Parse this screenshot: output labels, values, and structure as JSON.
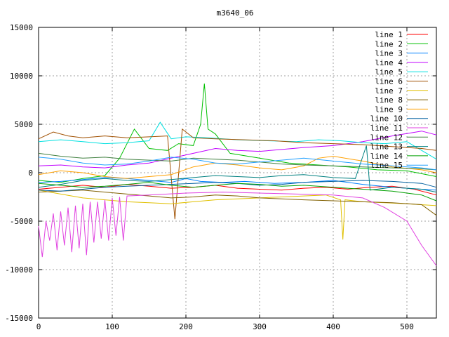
{
  "chart_data": {
    "type": "line",
    "title": "m3640_06",
    "xlabel": "",
    "ylabel": "",
    "xlim": [
      0,
      540
    ],
    "ylim": [
      -15000,
      15000
    ],
    "xticks": [
      0,
      100,
      200,
      300,
      400,
      500
    ],
    "yticks": [
      -15000,
      -10000,
      -5000,
      0,
      5000,
      10000,
      15000
    ],
    "grid": true,
    "legend_position": "top-right",
    "series": [
      {
        "name": "line 1",
        "color": "#ff0000",
        "x": [
          0,
          30,
          60,
          90,
          120,
          150,
          180,
          210,
          240,
          270,
          300,
          330,
          360,
          390,
          420,
          450,
          480,
          510,
          540
        ],
        "y": [
          -1700,
          -1500,
          -1300,
          -1500,
          -1200,
          -1400,
          -1600,
          -1500,
          -1300,
          -1600,
          -1700,
          -1800,
          -1600,
          -1500,
          -1700,
          -1500,
          -1400,
          -1700,
          -2300
        ]
      },
      {
        "name": "line 2",
        "color": "#00c000",
        "x": [
          0,
          30,
          60,
          90,
          110,
          130,
          150,
          175,
          190,
          210,
          220,
          225,
          230,
          240,
          260,
          300,
          340,
          380,
          420,
          460,
          500,
          540
        ],
        "y": [
          -800,
          -1000,
          -600,
          -300,
          1500,
          4500,
          2500,
          2300,
          3000,
          2800,
          5000,
          9200,
          4500,
          4000,
          2000,
          1500,
          1000,
          800,
          600,
          300,
          200,
          -400
        ]
      },
      {
        "name": "line 3",
        "color": "#0080ff",
        "x": [
          0,
          30,
          60,
          90,
          120,
          150,
          180,
          200,
          220,
          250,
          280,
          320,
          360,
          400,
          440,
          480,
          520,
          540
        ],
        "y": [
          -1000,
          -900,
          -700,
          -500,
          -600,
          -800,
          -1000,
          -600,
          -900,
          -1000,
          -900,
          -1100,
          -1000,
          -800,
          -1200,
          -1500,
          -1700,
          -1800
        ]
      },
      {
        "name": "line 4",
        "color": "#c000ff",
        "x": [
          0,
          30,
          60,
          90,
          120,
          150,
          180,
          210,
          240,
          270,
          300,
          330,
          360,
          400,
          440,
          480,
          520,
          540
        ],
        "y": [
          700,
          800,
          600,
          500,
          800,
          1000,
          1500,
          2000,
          2500,
          2300,
          2200,
          2400,
          2600,
          2800,
          3200,
          3800,
          4300,
          3900
        ]
      },
      {
        "name": "line 5",
        "color": "#00e0e0",
        "x": [
          0,
          30,
          60,
          90,
          120,
          150,
          165,
          180,
          200,
          230,
          270,
          310,
          350,
          380,
          410,
          440,
          470,
          500,
          540
        ],
        "y": [
          3200,
          3400,
          3200,
          3000,
          3100,
          3300,
          5200,
          3500,
          3700,
          3600,
          3400,
          3300,
          3200,
          3400,
          3300,
          3100,
          3000,
          3200,
          1400
        ]
      },
      {
        "name": "line 6",
        "color": "#a05000",
        "x": [
          0,
          20,
          40,
          60,
          90,
          120,
          150,
          175,
          185,
          195,
          210,
          240,
          280,
          320,
          360,
          400,
          440,
          480,
          520,
          540
        ],
        "y": [
          3500,
          4200,
          3800,
          3600,
          3800,
          3600,
          3700,
          3800,
          -4800,
          4500,
          3600,
          3500,
          3400,
          3300,
          3100,
          3000,
          2900,
          2700,
          2500,
          2300
        ]
      },
      {
        "name": "line 7",
        "color": "#e0c000",
        "x": [
          0,
          30,
          60,
          90,
          120,
          150,
          180,
          210,
          240,
          270,
          300,
          330,
          360,
          390,
          410,
          413,
          416,
          440,
          470,
          500,
          540
        ],
        "y": [
          -1800,
          -2200,
          -2600,
          -2800,
          -3000,
          -3100,
          -3200,
          -3000,
          -2800,
          -2700,
          -2600,
          -2500,
          -2400,
          -2300,
          -2800,
          -6900,
          -2800,
          -3000,
          -3100,
          -3200,
          -3400
        ]
      },
      {
        "name": "line 8",
        "color": "#806000",
        "x": [
          0,
          30,
          60,
          90,
          120,
          150,
          180,
          210,
          240,
          270,
          300,
          330,
          360,
          400,
          440,
          480,
          520,
          540
        ],
        "y": [
          -2000,
          -1900,
          -1800,
          -2000,
          -2200,
          -2400,
          -2600,
          -2500,
          -2300,
          -2400,
          -2600,
          -2700,
          -2800,
          -2900,
          -3000,
          -3100,
          -3300,
          -4400
        ]
      },
      {
        "name": "line 9",
        "color": "#ffa000",
        "x": [
          0,
          30,
          60,
          90,
          120,
          150,
          180,
          210,
          240,
          270,
          300,
          330,
          360,
          380,
          400,
          440,
          480,
          520,
          540
        ],
        "y": [
          -200,
          200,
          0,
          -400,
          -600,
          -400,
          -200,
          600,
          1000,
          800,
          500,
          300,
          700,
          1500,
          1700,
          1200,
          600,
          300,
          0
        ]
      },
      {
        "name": "line 10",
        "color": "#0060a0",
        "x": [
          0,
          30,
          60,
          90,
          120,
          150,
          180,
          210,
          240,
          270,
          300,
          330,
          360,
          400,
          440,
          480,
          520,
          540
        ],
        "y": [
          -1800,
          -1900,
          -1700,
          -1500,
          -1400,
          -1300,
          -1200,
          -1100,
          -1000,
          -1100,
          -1300,
          -1200,
          -1000,
          -900,
          -800,
          -900,
          -1100,
          -1500
        ]
      },
      {
        "name": "line 11",
        "color": "#e040e0",
        "x": [
          0,
          5,
          10,
          15,
          20,
          25,
          30,
          35,
          40,
          45,
          50,
          55,
          60,
          65,
          70,
          75,
          80,
          85,
          90,
          95,
          100,
          105,
          110,
          115,
          120,
          150,
          200,
          250,
          300,
          350,
          400,
          440,
          470,
          500,
          520,
          540
        ],
        "y": [
          -5500,
          -8700,
          -5000,
          -7000,
          -4200,
          -8000,
          -4000,
          -7500,
          -3600,
          -8200,
          -3400,
          -7800,
          -3200,
          -8500,
          -3000,
          -7200,
          -3000,
          -6800,
          -2800,
          -7000,
          -2600,
          -6500,
          -2500,
          -7000,
          -2400,
          -2300,
          -2100,
          -2000,
          -2100,
          -2200,
          -2300,
          -2600,
          -3600,
          -5000,
          -7500,
          -9600
        ]
      },
      {
        "name": "line 12",
        "color": "#408040",
        "x": [
          0,
          30,
          60,
          90,
          120,
          150,
          180,
          210,
          240,
          270,
          300,
          330,
          360,
          400,
          440,
          480,
          520,
          540
        ],
        "y": [
          2000,
          1700,
          1500,
          1600,
          1400,
          1300,
          1200,
          1500,
          1400,
          1300,
          1100,
          900,
          800,
          700,
          600,
          500,
          400,
          300
        ]
      },
      {
        "name": "line 13",
        "color": "#008080",
        "x": [
          0,
          30,
          60,
          90,
          120,
          150,
          180,
          210,
          240,
          270,
          300,
          330,
          360,
          400,
          430,
          445,
          450,
          480,
          520,
          540
        ],
        "y": [
          -1500,
          -1200,
          -800,
          -600,
          -800,
          -900,
          -700,
          -500,
          -300,
          -400,
          -500,
          -300,
          -200,
          -500,
          -600,
          2800,
          -1800,
          -1500,
          -1700,
          -2000
        ]
      },
      {
        "name": "line 14",
        "color": "#00a000",
        "x": [
          0,
          30,
          60,
          90,
          120,
          150,
          180,
          210,
          240,
          270,
          300,
          330,
          360,
          400,
          440,
          480,
          520,
          540
        ],
        "y": [
          -1100,
          -1300,
          -1500,
          -1400,
          -1200,
          -1000,
          -1300,
          -1500,
          -1300,
          -1100,
          -1200,
          -1400,
          -1300,
          -1500,
          -1700,
          -1900,
          -2300,
          -2900
        ]
      },
      {
        "name": "line 15",
        "color": "#20a0ff",
        "x": [
          0,
          30,
          60,
          90,
          120,
          150,
          180,
          210,
          240,
          270,
          300,
          330,
          360,
          400,
          440,
          480,
          520,
          540
        ],
        "y": [
          1600,
          1400,
          1000,
          800,
          900,
          1200,
          1600,
          1400,
          1000,
          900,
          1100,
          1300,
          1500,
          1200,
          900,
          700,
          500,
          300
        ]
      }
    ]
  }
}
